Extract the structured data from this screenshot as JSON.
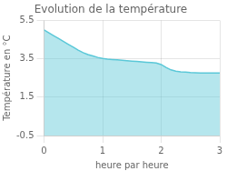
{
  "chart_data": {
    "type": "area",
    "title": "Evolution de la température",
    "xlabel": "heure par heure",
    "ylabel": "Température en °C",
    "x": [
      0,
      0.083,
      0.167,
      0.25,
      0.333,
      0.417,
      0.5,
      0.583,
      0.667,
      0.75,
      0.833,
      0.917,
      1.0,
      1.083,
      1.167,
      1.25,
      1.333,
      1.417,
      1.5,
      1.583,
      1.667,
      1.75,
      1.833,
      1.917,
      2.0,
      2.083,
      2.167,
      2.25,
      2.333,
      2.417,
      2.5,
      2.583,
      2.667,
      2.75,
      2.833,
      2.917,
      3.0
    ],
    "series": [
      {
        "color": "#5bc8d8",
        "values": [
          5.0,
          4.85,
          4.7,
          4.55,
          4.4,
          4.25,
          4.1,
          3.95,
          3.82,
          3.72,
          3.65,
          3.57,
          3.52,
          3.48,
          3.46,
          3.44,
          3.42,
          3.4,
          3.38,
          3.36,
          3.34,
          3.32,
          3.3,
          3.28,
          3.2,
          3.05,
          2.92,
          2.85,
          2.82,
          2.8,
          2.78,
          2.77,
          2.76,
          2.76,
          2.76,
          2.76,
          2.76
        ]
      }
    ],
    "xlim": [
      0,
      3
    ],
    "xticks": [
      0,
      1,
      2,
      3
    ],
    "ylim": [
      -0.5,
      5.5
    ],
    "yticks": [
      -0.5,
      1.5,
      3.5,
      5.5
    ],
    "grid": true
  }
}
